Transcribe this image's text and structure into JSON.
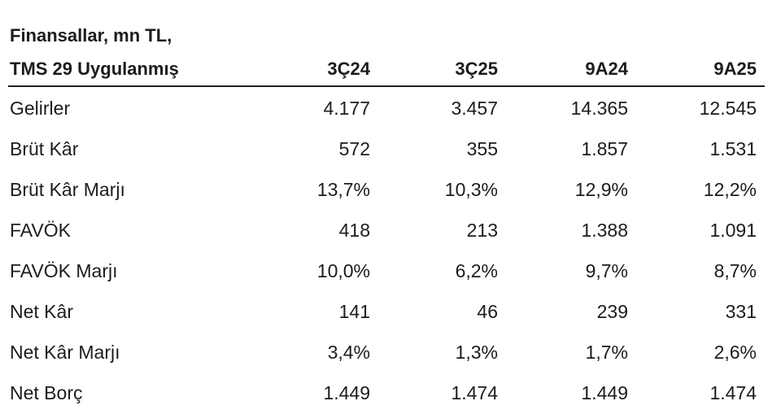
{
  "header": {
    "title": [
      "Finansallar, mn TL,",
      "TMS 29 Uygulanmış"
    ],
    "columns": [
      "3Ç24",
      "3Ç25",
      "9A24",
      "9A25"
    ]
  },
  "table": {
    "rows": [
      [
        "Gelirler",
        "4.177",
        "3.457",
        "14.365",
        "12.545"
      ],
      [
        "Brüt Kâr",
        "572",
        "355",
        "1.857",
        "1.531"
      ],
      [
        "Brüt Kâr Marjı",
        "13,7%",
        "10,3%",
        "12,9%",
        "12,2%"
      ],
      [
        "FAVÖK",
        "418",
        "213",
        "1.388",
        "1.091"
      ],
      [
        "FAVÖK Marjı",
        "10,0%",
        "6,2%",
        "9,7%",
        "8,7%"
      ],
      [
        "Net Kâr",
        "141",
        "46",
        "239",
        "331"
      ],
      [
        "Net Kâr Marjı",
        "3,4%",
        "1,3%",
        "1,7%",
        "2,6%"
      ],
      [
        "Net Borç",
        "1.449",
        "1.474",
        "1.449",
        "1.474"
      ]
    ]
  }
}
